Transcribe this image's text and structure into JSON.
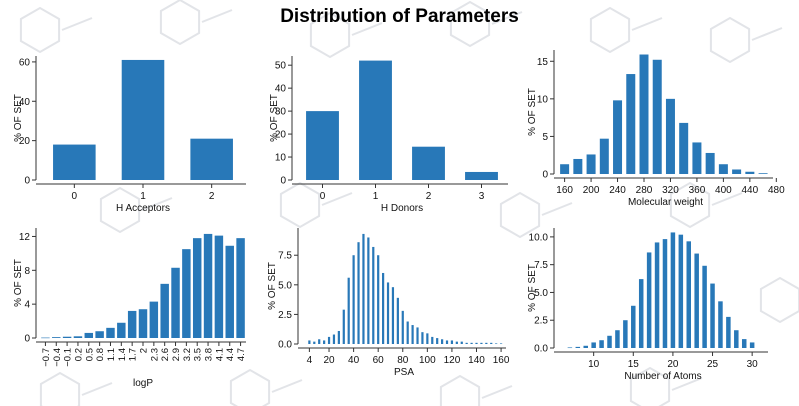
{
  "page_title": "Distribution of Parameters",
  "colors": {
    "bar": "#2878b8",
    "axis": "#333333",
    "background_pattern": "#e2e4e8"
  },
  "chart_data": [
    {
      "id": "h-acceptors",
      "type": "bar",
      "xlabel": "H Acceptors",
      "ylabel": "% OF SET",
      "categories": [
        "0",
        "1",
        "2"
      ],
      "values": [
        18,
        61,
        21
      ],
      "ylim": [
        0,
        63
      ],
      "yticks": [
        0,
        20,
        40,
        60
      ],
      "ytick_labels": [
        "0",
        "20",
        "40",
        "60"
      ],
      "xticks": [
        "0",
        "1",
        "2"
      ],
      "grid": false
    },
    {
      "id": "h-donors",
      "type": "bar",
      "xlabel": "H Donors",
      "ylabel": "% OF SET",
      "categories": [
        "0",
        "1",
        "2",
        "3"
      ],
      "values": [
        30,
        52,
        14.5,
        3.5
      ],
      "ylim": [
        0,
        54
      ],
      "yticks": [
        0,
        10,
        20,
        30,
        40,
        50
      ],
      "ytick_labels": [
        "0",
        "10",
        "20",
        "30",
        "40",
        "50"
      ],
      "xticks": [
        "0",
        "1",
        "2",
        "3"
      ],
      "grid": false
    },
    {
      "id": "molecular-weight",
      "type": "bar",
      "xlabel": "Molecular weight",
      "ylabel": "% OF SET",
      "x": [
        160,
        180,
        200,
        220,
        240,
        260,
        280,
        300,
        320,
        340,
        360,
        380,
        400,
        420,
        440,
        460
      ],
      "values": [
        1.3,
        2.0,
        2.6,
        4.7,
        9.8,
        13.3,
        15.9,
        15.2,
        10.0,
        6.8,
        4.2,
        2.8,
        1.3,
        0.6,
        0.3,
        0.1
      ],
      "xlim": [
        150,
        475
      ],
      "xticks": [
        160,
        200,
        240,
        280,
        320,
        360,
        400,
        440,
        480
      ],
      "xtick_labels": [
        "160",
        "200",
        "240",
        "280",
        "320",
        "360",
        "400",
        "440",
        "480"
      ],
      "ylim": [
        0,
        16.5
      ],
      "yticks": [
        0,
        5,
        10,
        15
      ],
      "ytick_labels": [
        "0",
        "5",
        "10",
        "15"
      ],
      "grid": false
    },
    {
      "id": "logp",
      "type": "bar",
      "xlabel": "logP",
      "ylabel": "% OF SET",
      "categories": [
        "-0.7",
        "-0.4",
        "-0.1",
        "0.2",
        "0.5",
        "0.8",
        "1.1",
        "1.4",
        "1.7",
        "2.0",
        "2.3",
        "2.6",
        "2.9",
        "3.2",
        "3.5",
        "3.8",
        "4.1",
        "4.4",
        "4.7"
      ],
      "values": [
        0.05,
        0.1,
        0.15,
        0.2,
        0.6,
        0.8,
        1.2,
        1.8,
        3.2,
        3.4,
        4.3,
        6.4,
        8.3,
        10.5,
        11.8,
        12.3,
        12.1,
        10.9,
        11.8
      ],
      "xtick_labels": [
        "−0.7",
        "−0.4",
        "−0.1",
        "0.2",
        "0.5",
        "0.8",
        "1.1",
        "1.4",
        "1.7",
        "2",
        "2.3",
        "2.6",
        "2.9",
        "3.2",
        "3.5",
        "3.8",
        "4.1",
        "4.4",
        "4.7"
      ],
      "ylim": [
        0,
        13
      ],
      "yticks": [
        0,
        4,
        8,
        12
      ],
      "ytick_labels": [
        "0",
        "4",
        "8",
        "12"
      ],
      "grid": false
    },
    {
      "id": "psa",
      "type": "bar",
      "xlabel": "PSA",
      "ylabel": "% OF SET",
      "x": [
        4,
        8,
        12,
        16,
        20,
        24,
        28,
        32,
        36,
        40,
        44,
        48,
        52,
        56,
        60,
        64,
        68,
        72,
        76,
        80,
        84,
        88,
        92,
        96,
        100,
        104,
        108,
        112,
        116,
        120,
        124,
        128,
        132,
        136,
        140,
        144,
        148,
        152,
        156,
        160
      ],
      "values": [
        0.3,
        0.2,
        0.4,
        0.3,
        0.6,
        0.8,
        1.1,
        2.9,
        5.6,
        7.5,
        8.6,
        9.3,
        9.0,
        8.2,
        7.5,
        6.0,
        5.2,
        4.8,
        3.9,
        2.8,
        1.9,
        1.6,
        1.4,
        1.0,
        0.9,
        0.6,
        0.5,
        0.4,
        0.3,
        0.3,
        0.2,
        0.2,
        0.1,
        0.1,
        0.1,
        0.1,
        0.1,
        0.1,
        0.05,
        0.05
      ],
      "xlim": [
        -2,
        164
      ],
      "xticks": [
        4,
        20,
        40,
        60,
        80,
        100,
        120,
        140,
        160
      ],
      "xtick_labels": [
        "4",
        "20",
        "40",
        "60",
        "80",
        "100",
        "120",
        "140",
        "160"
      ],
      "ylim": [
        0,
        9.8
      ],
      "yticks": [
        0,
        2.5,
        5,
        7.5
      ],
      "ytick_labels": [
        "0.0",
        "2.5",
        "5.0",
        "7.5"
      ],
      "grid": false
    },
    {
      "id": "number-of-atoms",
      "type": "bar",
      "xlabel": "Number of Atoms",
      "ylabel": "% OF SET",
      "x": [
        7,
        8,
        9,
        10,
        11,
        12,
        13,
        14,
        15,
        16,
        17,
        18,
        19,
        20,
        21,
        22,
        23,
        24,
        25,
        26,
        27,
        28,
        29,
        30
      ],
      "values": [
        0.05,
        0.1,
        0.2,
        0.5,
        0.7,
        1.1,
        1.6,
        2.5,
        3.8,
        6.2,
        8.6,
        9.5,
        9.8,
        10.4,
        10.2,
        9.6,
        8.5,
        7.4,
        5.8,
        4.2,
        2.8,
        1.6,
        0.8,
        0.5
      ],
      "xlim": [
        5.5,
        32
      ],
      "xticks": [
        10,
        15,
        20,
        25,
        30
      ],
      "xtick_labels": [
        "10",
        "15",
        "20",
        "25",
        "30"
      ],
      "ylim": [
        0,
        10.8
      ],
      "yticks": [
        0,
        2.5,
        5,
        7.5,
        10
      ],
      "ytick_labels": [
        "0.0",
        "2.5",
        "5.0",
        "7.5",
        "10.0"
      ],
      "grid": false
    }
  ]
}
